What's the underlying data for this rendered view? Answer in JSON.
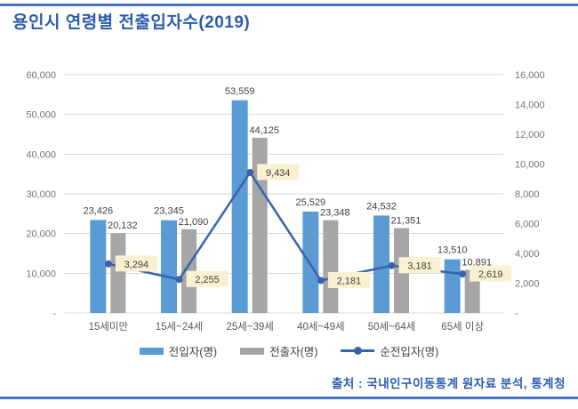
{
  "page": {
    "title": "용인시 연령별 전출입자수(2019)",
    "source": "출처 : 국내인구이동통계 원자료 분석, 통계청"
  },
  "theme": {
    "title_color": "#2B5CAD",
    "rule_color": "#4472C4",
    "grid_color": "#D9D9D9",
    "axis_text_color": "#757575",
    "bar_label_color": "#3F3F3F",
    "category_text_color": "#595959",
    "legend_text_color": "#404040",
    "line_label_bg": "#FAF1D2"
  },
  "chart_data": {
    "type": "bar",
    "subtype": "clustered-bar-with-line-combo",
    "categories": [
      "15세미만",
      "15세~24세",
      "25세~39세",
      "40세~49세",
      "50세~64세",
      "65세 이상"
    ],
    "series": [
      {
        "name": "전입자(명)",
        "type": "bar",
        "axis": "left",
        "color": "#5B9BD5",
        "values": [
          23426,
          23345,
          53559,
          25529,
          24532,
          13510
        ]
      },
      {
        "name": "전출자(명)",
        "type": "bar",
        "axis": "left",
        "color": "#A6A6A6",
        "values": [
          20132,
          21090,
          44125,
          23348,
          21351,
          10891
        ]
      },
      {
        "name": "순전입자(명)",
        "type": "line",
        "axis": "right",
        "color": "#3A62AC",
        "values": [
          3294,
          2255,
          9434,
          2181,
          3181,
          2619
        ]
      }
    ],
    "left_axis": {
      "min": 0,
      "max": 60000,
      "step": 10000,
      "tick_labels": [
        "-",
        "10,000",
        "20,000",
        "30,000",
        "40,000",
        "50,000",
        "60,000"
      ]
    },
    "right_axis": {
      "min": 0,
      "max": 16000,
      "step": 2000,
      "tick_labels": [
        "-",
        "2,000",
        "4,000",
        "6,000",
        "8,000",
        "10,000",
        "12,000",
        "14,000",
        "16,000"
      ]
    },
    "grid": true,
    "legend_position": "bottom",
    "data_labels": true
  }
}
